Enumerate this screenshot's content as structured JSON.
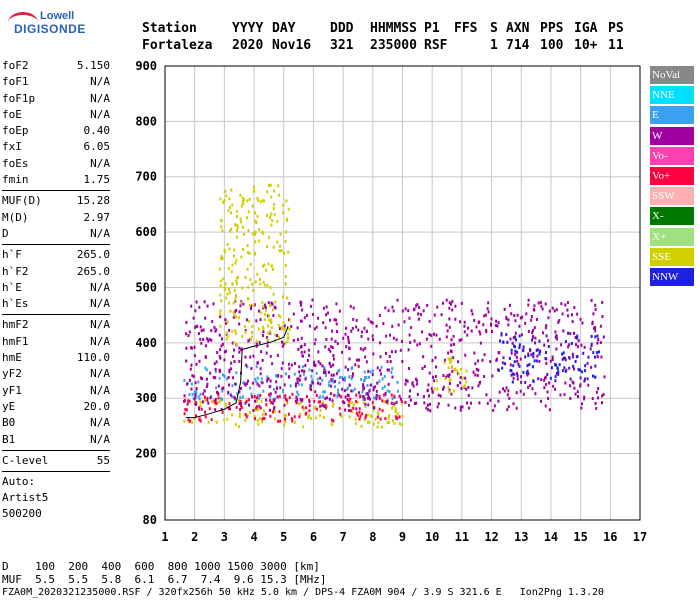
{
  "logo": {
    "line1": "Lowell",
    "line2": "DIGISONDE"
  },
  "header": {
    "labels": [
      "Station",
      "YYYY",
      "DAY",
      "DDD",
      "HHMMSS",
      "P1",
      "FFS",
      "S",
      "AXN",
      "PPS",
      "IGA",
      "PS"
    ],
    "values": [
      "Fortaleza",
      "2020",
      "Nov16",
      "321",
      "235000",
      "RSF",
      "",
      "1",
      "714",
      "100",
      "10+",
      "11"
    ]
  },
  "params_group1": [
    {
      "name": "foF2",
      "value": "5.150"
    },
    {
      "name": "foF1",
      "value": "N/A"
    },
    {
      "name": "foF1p",
      "value": "N/A"
    },
    {
      "name": "foE",
      "value": "N/A"
    },
    {
      "name": "foEp",
      "value": "0.40"
    },
    {
      "name": "fxI",
      "value": "6.05"
    },
    {
      "name": "foEs",
      "value": "N/A"
    },
    {
      "name": "fmin",
      "value": "1.75"
    }
  ],
  "params_group2": [
    {
      "name": "MUF(D)",
      "value": "15.28"
    },
    {
      "name": "M(D)",
      "value": "2.97"
    },
    {
      "name": "D",
      "value": "N/A"
    }
  ],
  "params_group3": [
    {
      "name": "h`F",
      "value": "265.0"
    },
    {
      "name": "h`F2",
      "value": "265.0"
    },
    {
      "name": "h`E",
      "value": "N/A"
    },
    {
      "name": "h`Es",
      "value": "N/A"
    }
  ],
  "params_group4": [
    {
      "name": "hmF2",
      "value": "N/A"
    },
    {
      "name": "hmF1",
      "value": "N/A"
    },
    {
      "name": "hmE",
      "value": "110.0"
    },
    {
      "name": "yF2",
      "value": "N/A"
    },
    {
      "name": "yF1",
      "value": "N/A"
    },
    {
      "name": "yE",
      "value": "20.0"
    },
    {
      "name": "B0",
      "value": "N/A"
    },
    {
      "name": "B1",
      "value": "N/A"
    }
  ],
  "params_group5": [
    {
      "name": "C-level",
      "value": "55"
    }
  ],
  "auto": {
    "line1": "Auto:",
    "line2": "Artist5",
    "line3": "500200"
  },
  "legend": [
    {
      "label": "NoVal",
      "color": "#888888"
    },
    {
      "label": "NNE",
      "color": "#00e0ff"
    },
    {
      "label": "E",
      "color": "#3ca0f0"
    },
    {
      "label": "W",
      "color": "#a000a0"
    },
    {
      "label": "Vo-",
      "color": "#ff40b0"
    },
    {
      "label": "Vo+",
      "color": "#ff0040"
    },
    {
      "label": "SSW",
      "color": "#ffb0b0"
    },
    {
      "label": "X-",
      "color": "#007800"
    },
    {
      "label": "X+",
      "color": "#a0e080"
    },
    {
      "label": "SSE",
      "color": "#d0d000"
    },
    {
      "label": "NNW",
      "color": "#2020e0"
    }
  ],
  "muf_scale": {
    "d_label": "D",
    "d_values": "100  200  400  600  800 1000 1500 3000 [km]",
    "muf_label": "MUF",
    "muf_values": "5.5  5.5  5.8  6.1  6.7  7.4  9.6 15.3 [MHz]"
  },
  "footer": "FZA0M_2020321235000.RSF / 320fx256h 50 kHz 5.0 km / DPS-4 FZA0M 904 / 3.9 S 321.6 E   Ion2Png 1.3.20",
  "chart_data": {
    "type": "scatter",
    "title": "",
    "xlabel": "",
    "ylabel": "",
    "xlim": [
      1,
      17
    ],
    "ylim": [
      80,
      900
    ],
    "xticks": [
      1,
      2,
      3,
      4,
      5,
      6,
      7,
      8,
      9,
      10,
      11,
      12,
      13,
      14,
      15,
      16,
      17
    ],
    "yticks": [
      80,
      200,
      300,
      400,
      500,
      600,
      700,
      800,
      900
    ],
    "grid": true,
    "legend_position": "right",
    "clusters": [
      {
        "name": "E",
        "x_range": [
          1.6,
          9.0
        ],
        "y_range": [
          300,
          360
        ]
      },
      {
        "name": "SSE",
        "x_range": [
          1.6,
          9.0
        ],
        "y_range": [
          250,
          300
        ]
      },
      {
        "name": "Vo+",
        "x_range": [
          1.6,
          9.0
        ],
        "y_range": [
          260,
          310
        ]
      },
      {
        "name": "W",
        "x_range": [
          1.6,
          15.8
        ],
        "y_range": [
          280,
          480
        ]
      },
      {
        "name": "SSE",
        "x_range": [
          2.8,
          5.2
        ],
        "y_range": [
          400,
          690
        ]
      },
      {
        "name": "NNW",
        "x_range": [
          12.2,
          15.6
        ],
        "y_range": [
          330,
          420
        ]
      },
      {
        "name": "SSE",
        "x_range": [
          10.0,
          11.2
        ],
        "y_range": [
          310,
          380
        ]
      }
    ],
    "trace_points": [
      {
        "x": 1.7,
        "y": 265
      },
      {
        "x": 2.0,
        "y": 265
      },
      {
        "x": 2.5,
        "y": 272
      },
      {
        "x": 3.0,
        "y": 280
      },
      {
        "x": 3.4,
        "y": 292
      },
      {
        "x": 3.55,
        "y": 330
      },
      {
        "x": 3.6,
        "y": 388
      },
      {
        "x": 4.0,
        "y": 394
      },
      {
        "x": 4.5,
        "y": 400
      },
      {
        "x": 5.0,
        "y": 410
      },
      {
        "x": 5.15,
        "y": 430
      }
    ]
  }
}
